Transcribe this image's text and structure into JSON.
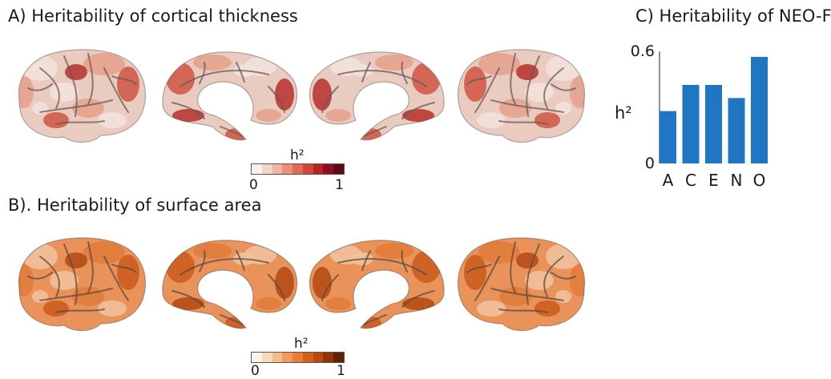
{
  "panels": {
    "a": {
      "title": "A) Heritability of cortical thickness",
      "colorbar": {
        "label": "h²",
        "min": "0",
        "max": "1",
        "colors": [
          "#fbf0ec",
          "#f5d3c6",
          "#efb5a2",
          "#e8907a",
          "#df6a55",
          "#d0443a",
          "#b72426",
          "#8e0f1f",
          "#5c0a1a"
        ]
      },
      "palette": {
        "base": "#e9cbc0",
        "light": "#f3e3dc",
        "mid": "#e4a08a",
        "dark": "#cf5542",
        "vdark": "#b5302b",
        "sulcus": "#6a5a57"
      }
    },
    "b": {
      "title": "B). Heritability of surface area",
      "colorbar": {
        "label": "h²",
        "min": "0",
        "max": "1",
        "colors": [
          "#fdf3e8",
          "#fad9b8",
          "#f6bc8a",
          "#f19c5d",
          "#e77d37",
          "#d5601c",
          "#b7480e",
          "#8f3409",
          "#5e2106"
        ]
      },
      "palette": {
        "base": "#e9935a",
        "light": "#f0c3a0",
        "mid": "#e07a3a",
        "dark": "#c95a1c",
        "vdark": "#b04a12",
        "sulcus": "#5e4a3e"
      }
    },
    "c": {
      "title": "C) Heritability of NEO-FFI"
    }
  },
  "chart_data": {
    "type": "bar",
    "title": "C) Heritability of NEO-FFI",
    "categories": [
      "A",
      "C",
      "E",
      "N",
      "O"
    ],
    "values": [
      0.28,
      0.42,
      0.42,
      0.35,
      0.57
    ],
    "ylabel": "h²",
    "ylim": [
      0,
      0.6
    ],
    "yticks": [
      "0",
      "0.6"
    ],
    "bar_color": "#1f77c4",
    "grid": false
  }
}
